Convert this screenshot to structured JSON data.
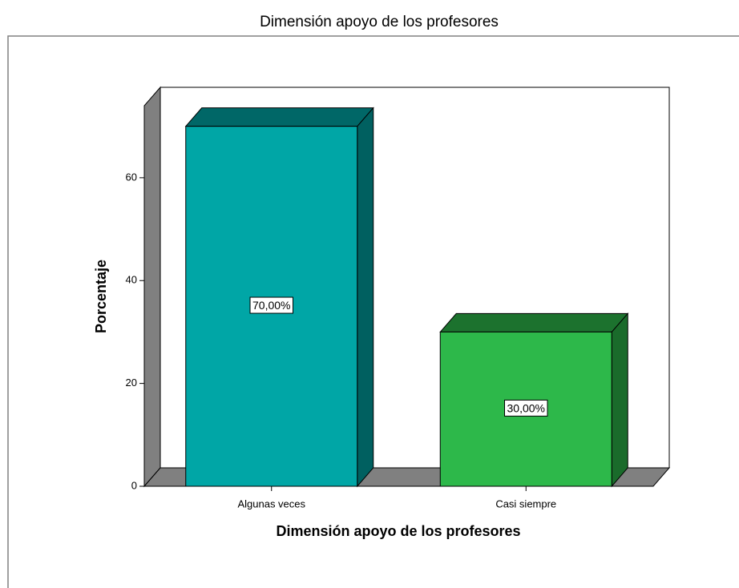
{
  "chart_data": {
    "type": "bar3d",
    "title": "Dimensión apoyo de los profesores",
    "x_label": "Dimensión apoyo de los profesores",
    "y_label": "Porcentaje",
    "categories": [
      "Algunas veces",
      "Casi siempre"
    ],
    "values": [
      70,
      30
    ],
    "value_labels": [
      "70,00%",
      "30,00%"
    ],
    "colors": [
      "#00a6a6",
      "#2db84a"
    ],
    "ylim": [
      0,
      74
    ],
    "yticks": [
      0,
      20,
      40,
      60
    ]
  }
}
